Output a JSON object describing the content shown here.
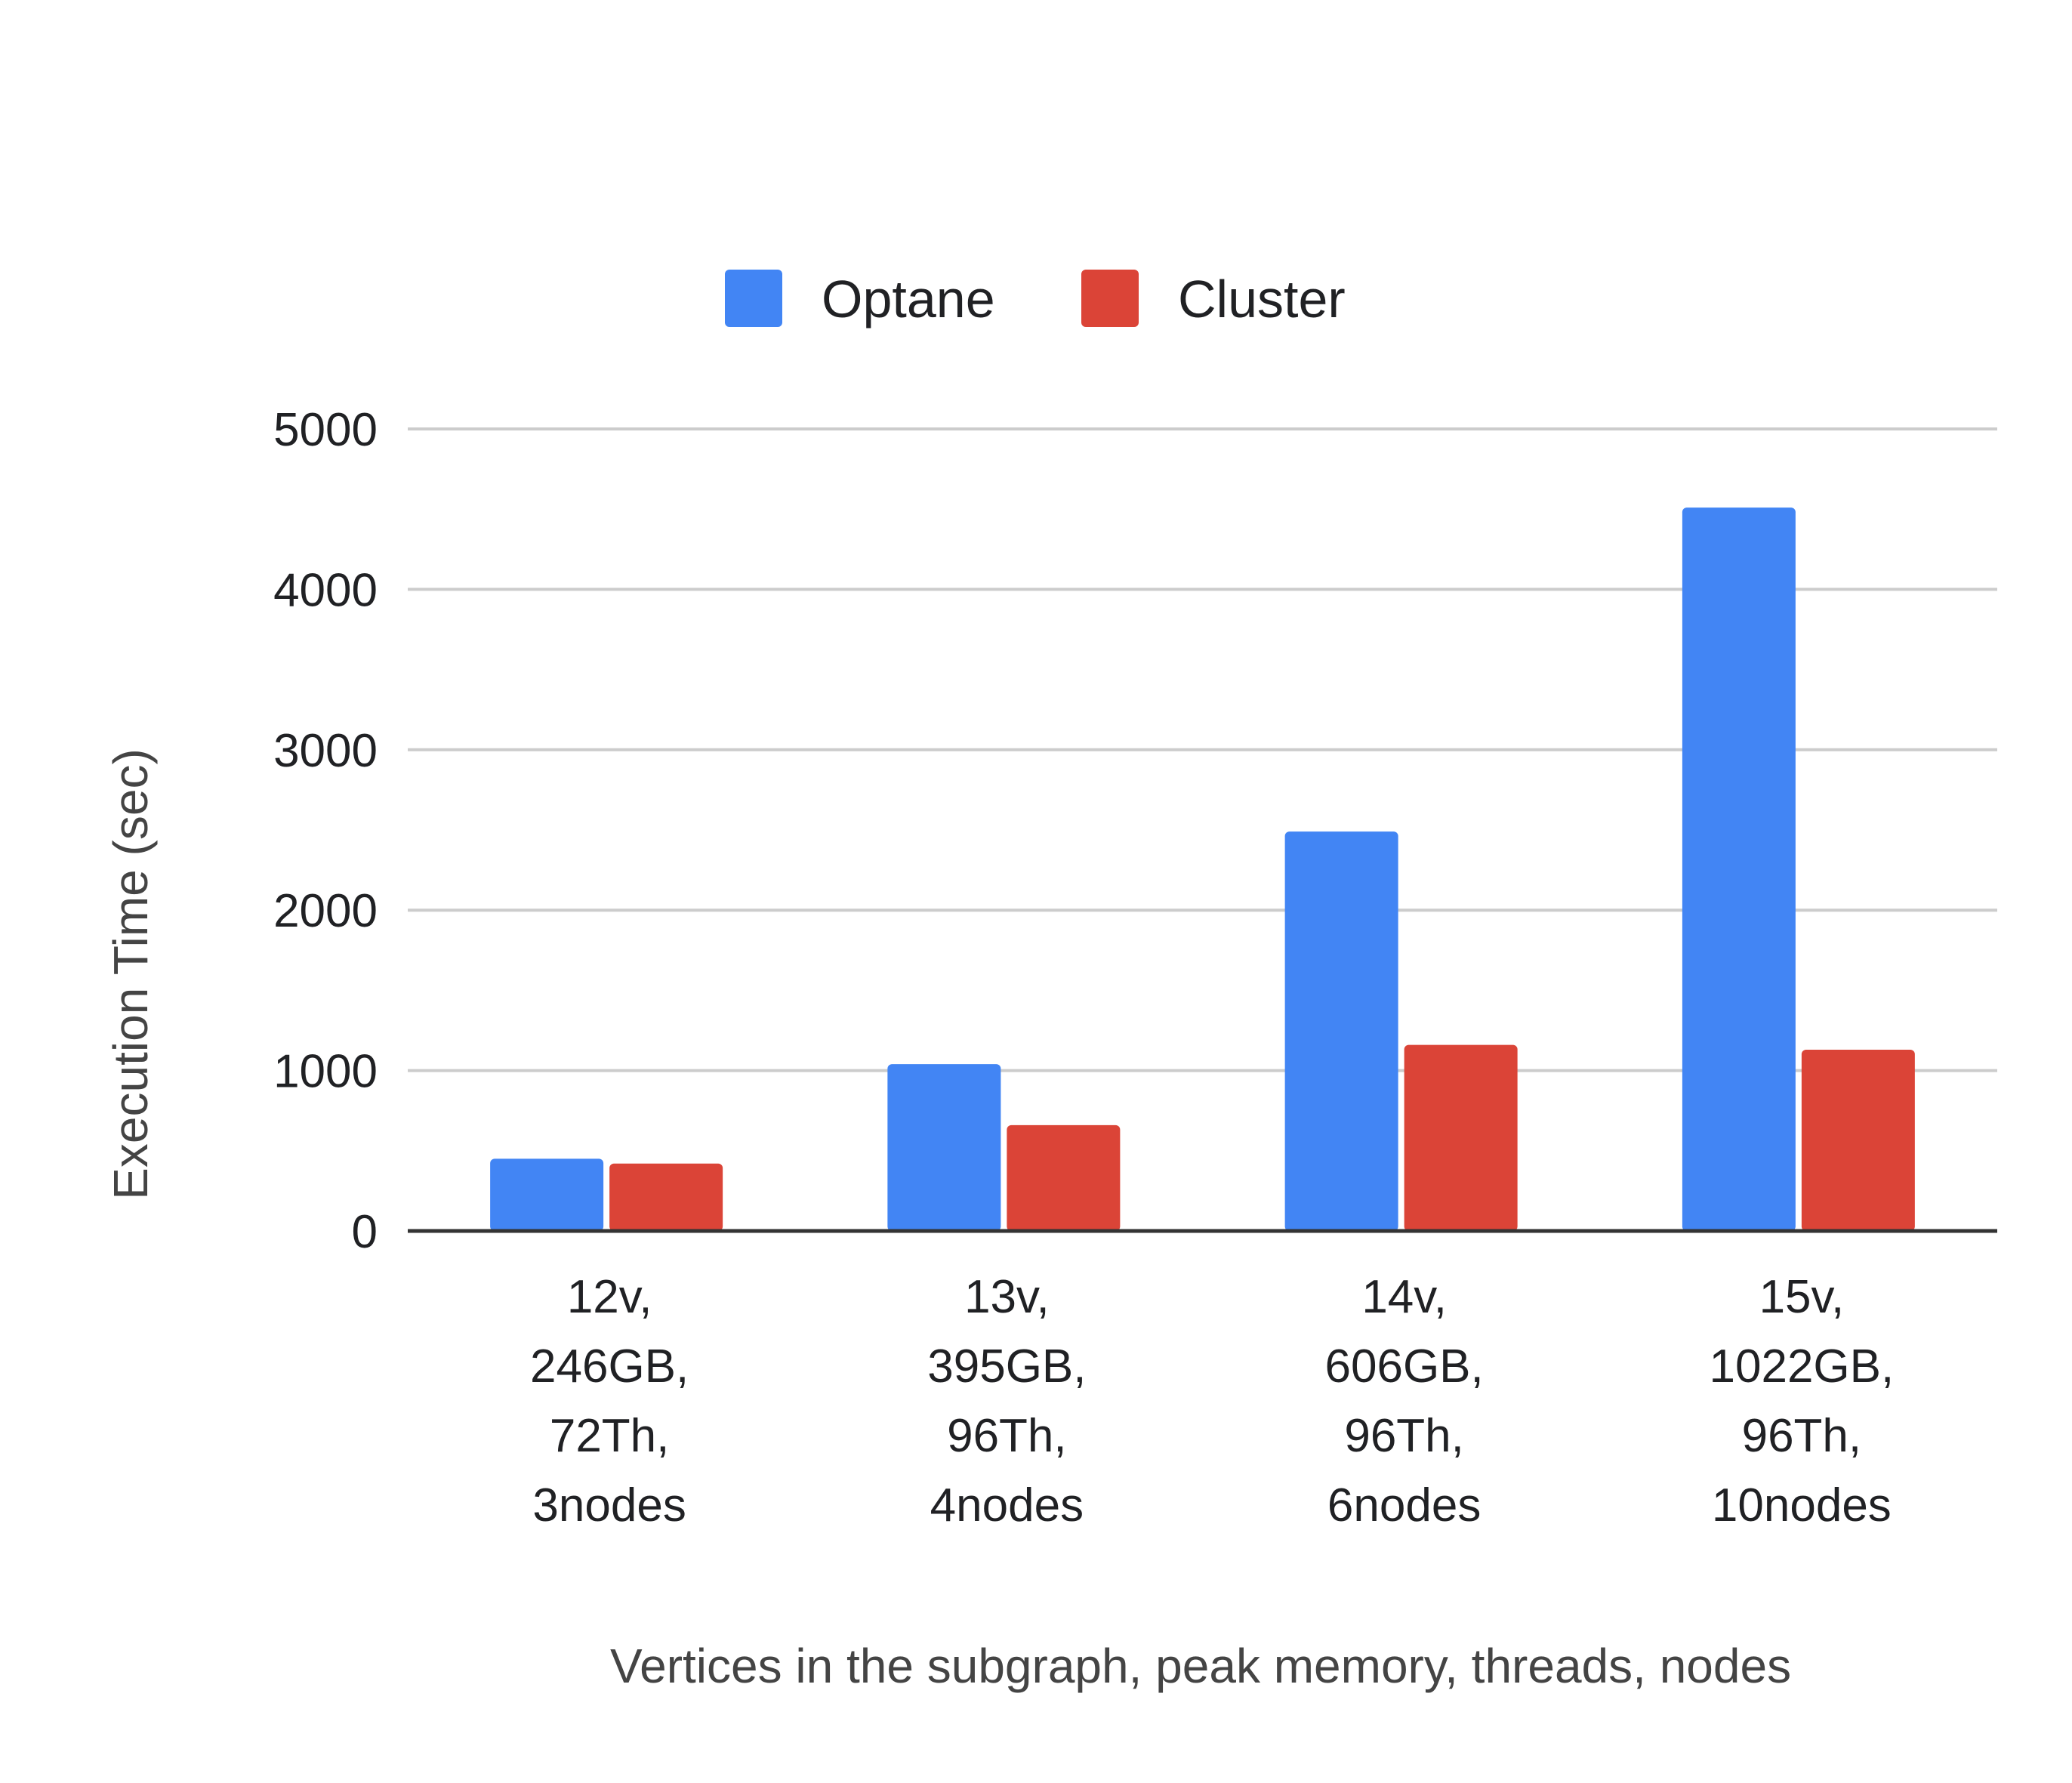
{
  "chart_data": {
    "type": "bar",
    "title": "",
    "xlabel": "Vertices in the subgraph, peak memory, threads, nodes",
    "ylabel": "Execution Time (sec)",
    "ylim": [
      0,
      5000
    ],
    "yticks": [
      "0",
      "1000",
      "2000",
      "3000",
      "4000",
      "5000"
    ],
    "grid": true,
    "legend_position": "top-center",
    "categories": [
      [
        "12v,",
        "246GB,",
        "72Th,",
        "3nodes"
      ],
      [
        "13v,",
        "395GB,",
        "96Th,",
        "4nodes"
      ],
      [
        "14v,",
        "606GB,",
        "96Th,",
        "6nodes"
      ],
      [
        "15v,",
        "1022GB,",
        "96Th,",
        "10nodes"
      ]
    ],
    "series": [
      {
        "name": "Optane",
        "color": "#4285F4",
        "values": [
          450,
          1040,
          2490,
          4510
        ]
      },
      {
        "name": "Cluster",
        "color": "#DB4437",
        "values": [
          420,
          660,
          1160,
          1130
        ]
      }
    ]
  }
}
